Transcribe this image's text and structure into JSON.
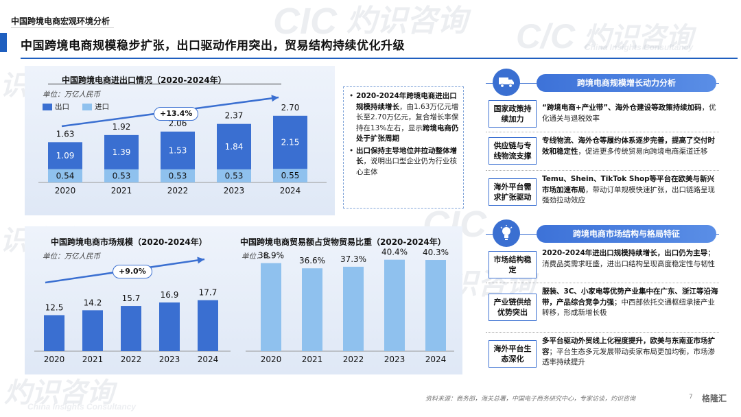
{
  "header": {
    "topic": "中国跨境电商宏观环境分析",
    "title": "中国跨境电商规模稳步扩张，出口驱动作用突出，贸易结构持续优化升级"
  },
  "watermark": {
    "brand_cn": "灼识咨询",
    "brand_en": "China Insights Consultancy",
    "logo": "CIC"
  },
  "panel1": {
    "title": "中国跨境电商进出口情况（2020-2024年）",
    "unit": "单位：万亿人民币",
    "legend_export": "出口",
    "legend_import": "进口",
    "growth": "+13.4%"
  },
  "panel2": {
    "title": "中国跨境电商市场规模（2020-2024年）",
    "unit": "单位：万亿人民币",
    "growth": "+9.0%"
  },
  "panel3": {
    "title": "中国跨境电商贸易额占货物贸易比重（2020-2024年）",
    "unit": "单位：%"
  },
  "notes": {
    "p1_bold": "2020-2024年跨境电商进出口规模持续增长",
    "p1_rest": "，由1.63万亿元增长至2.70万亿元，复合增长率保持在13%左右，显示",
    "p1_bold2": "跨境电商仍处于扩张周期",
    "p2_bold": "出口保持主导地位并拉动整体增长",
    "p2_rest": "，说明出口型企业仍为行业核心主体"
  },
  "section1": {
    "title": "跨境电商规模增长动力分析",
    "icon": "truck-icon",
    "rows": [
      {
        "label": "国家政策持续加力",
        "bold": "“跨境电商+产业带”、海外仓建设等政策持续加码",
        "rest": "，优化通关与退税效率"
      },
      {
        "label": "供应链与专线物流支撑",
        "bold": "专线物流、海外仓等履约体系逐步完善，提高了交付时效和稳定性",
        "rest": "，促进更多传统贸易向跨境电商渠道迁移"
      },
      {
        "label": "海外平台需求扩张驱动",
        "bold": "Temu、Shein、TikTok Shop等平台在欧美与新兴市场加速布局",
        "rest": "，带动订单规模快速扩张，出口链路呈现强劲拉动效应"
      }
    ]
  },
  "section2": {
    "title": "跨境电商市场结构与格局特征",
    "icon": "lightbulb-icon",
    "rows": [
      {
        "label": "市场结构稳定",
        "bold": "2020-2024年进出口规模持续增长，出口仍为主导",
        "rest": "；消费品类需求旺盛，进出口结构呈现高度稳定性与韧性"
      },
      {
        "label": "产业链供给优势突出",
        "bold": "服装、3C、小家电等优势产业集中在广东、浙江等沿海带，产品综合竞争力强",
        "rest": "；中西部依托交通枢纽承接产业转移，形成新增长极"
      },
      {
        "label": "海外平台生态深化",
        "bold": "多平台驱动外贸线上化程度提升，欧美与东南亚市场扩容",
        "rest": "；平台生态多元发展带动卖家布局更加均衡，市场渗透率持续提升"
      }
    ]
  },
  "footer": {
    "source": "资料来源：商务部，海关总署，中国电子商务研究中心，专家访谈，灼识咨询",
    "page": "7",
    "brand": "格隆汇"
  },
  "colors": {
    "accent": "#1f5fbf",
    "export_bar": "#3a6fd1",
    "import_bar": "#8fc1ee",
    "share_bar": "#8fc1ee"
  },
  "chart_data": [
    {
      "type": "bar",
      "title": "中国跨境电商进出口情况（2020-2024年）",
      "unit": "万亿人民币",
      "categories": [
        "2020",
        "2021",
        "2022",
        "2023",
        "2024"
      ],
      "stacked": true,
      "series": [
        {
          "name": "出口",
          "values": [
            1.09,
            1.39,
            1.53,
            1.84,
            2.15
          ]
        },
        {
          "name": "进口",
          "values": [
            0.54,
            0.53,
            0.53,
            0.53,
            0.55
          ]
        }
      ],
      "totals": [
        1.63,
        1.92,
        2.06,
        2.37,
        2.7
      ],
      "total_labels": [
        "1.63",
        "1.92",
        "2.06",
        "2.37",
        "2.70"
      ],
      "export_labels": [
        "1.09",
        "1.39",
        "1.53",
        "1.84",
        "2.15"
      ],
      "import_labels": [
        "0.54",
        "0.53",
        "0.53",
        "0.53",
        "0.55"
      ],
      "cagr": "+13.4%",
      "legend_position": "top-left"
    },
    {
      "type": "bar",
      "title": "中国跨境电商市场规模（2020-2024年）",
      "unit": "万亿人民币",
      "categories": [
        "2020",
        "2021",
        "2022",
        "2023",
        "2024"
      ],
      "values": [
        12.5,
        14.2,
        15.7,
        16.9,
        17.7
      ],
      "labels": [
        "12.5",
        "14.2",
        "15.7",
        "16.9",
        "17.7"
      ],
      "cagr": "+9.0%"
    },
    {
      "type": "bar",
      "title": "中国跨境电商贸易额占货物贸易比重（2020-2024年）",
      "unit": "%",
      "categories": [
        "2020",
        "2021",
        "2022",
        "2023",
        "2024"
      ],
      "values": [
        38.9,
        36.6,
        37.3,
        40.4,
        40.3
      ],
      "labels": [
        "38.9%",
        "36.6%",
        "37.3%",
        "40.4%",
        "40.3%"
      ]
    }
  ]
}
